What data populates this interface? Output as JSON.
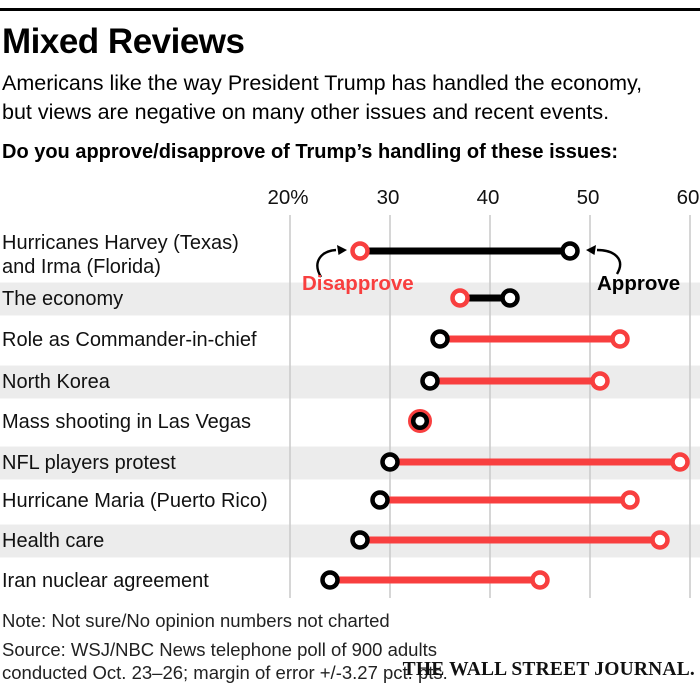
{
  "header": {
    "title": "Mixed Reviews",
    "subtitle_line1": "Americans like the way President Trump has handled the economy,",
    "subtitle_line2": "but views are negative on many other issues and recent events.",
    "question": "Do you approve/disapprove of Trump’s handling of these issues:"
  },
  "chart_data": {
    "type": "dumbbell",
    "title": "Do you approve/disapprove of Trump’s handling of these issues:",
    "xlim": [
      20,
      60
    ],
    "grid": true,
    "x_ticks": [
      {
        "label": "20%",
        "value": 20
      },
      {
        "label": "30",
        "value": 30
      },
      {
        "label": "40",
        "value": 40
      },
      {
        "label": "50",
        "value": 50
      },
      {
        "label": "60",
        "value": 60
      }
    ],
    "categories": [
      "Hurricanes Harvey (Texas)\nand Irma (Florida)",
      "The economy",
      "Role as Commander-in-chief",
      "North Korea",
      "Mass shooting in Las Vegas",
      "NFL players protest",
      "Hurricane Maria (Puerto Rico)",
      "Health care",
      "Iran nuclear agreement"
    ],
    "series": [
      {
        "name": "Approve",
        "color": "#000000",
        "values": [
          48,
          42,
          35,
          34,
          33,
          30,
          29,
          27,
          24
        ]
      },
      {
        "name": "Disapprove",
        "color": "#f83f3f",
        "values": [
          27,
          37,
          53,
          51,
          33,
          59,
          54,
          57,
          45
        ]
      }
    ],
    "connector_rule": "bar takes color of larger value: black when Approve higher, red when Disapprove higher",
    "annotations": [
      {
        "text": "Disapprove",
        "color": "#f83f3f"
      },
      {
        "text": "Approve",
        "color": "#000000"
      }
    ],
    "legend_position": "annotations on first row"
  },
  "footer": {
    "note": "Note: Not sure/No opinion numbers not charted",
    "source_line1": "Source: WSJ/NBC News telephone poll of 900 adults",
    "source_line2": "conducted Oct. 23–26; margin of error +/-3.27 pct. pts.",
    "brand": "THE WALL STREET JOURNAL."
  },
  "colors": {
    "approve": "#000000",
    "disapprove": "#f83f3f",
    "stripe": "#ececec",
    "gridline": "#c9c9c9",
    "text": "#111111"
  }
}
